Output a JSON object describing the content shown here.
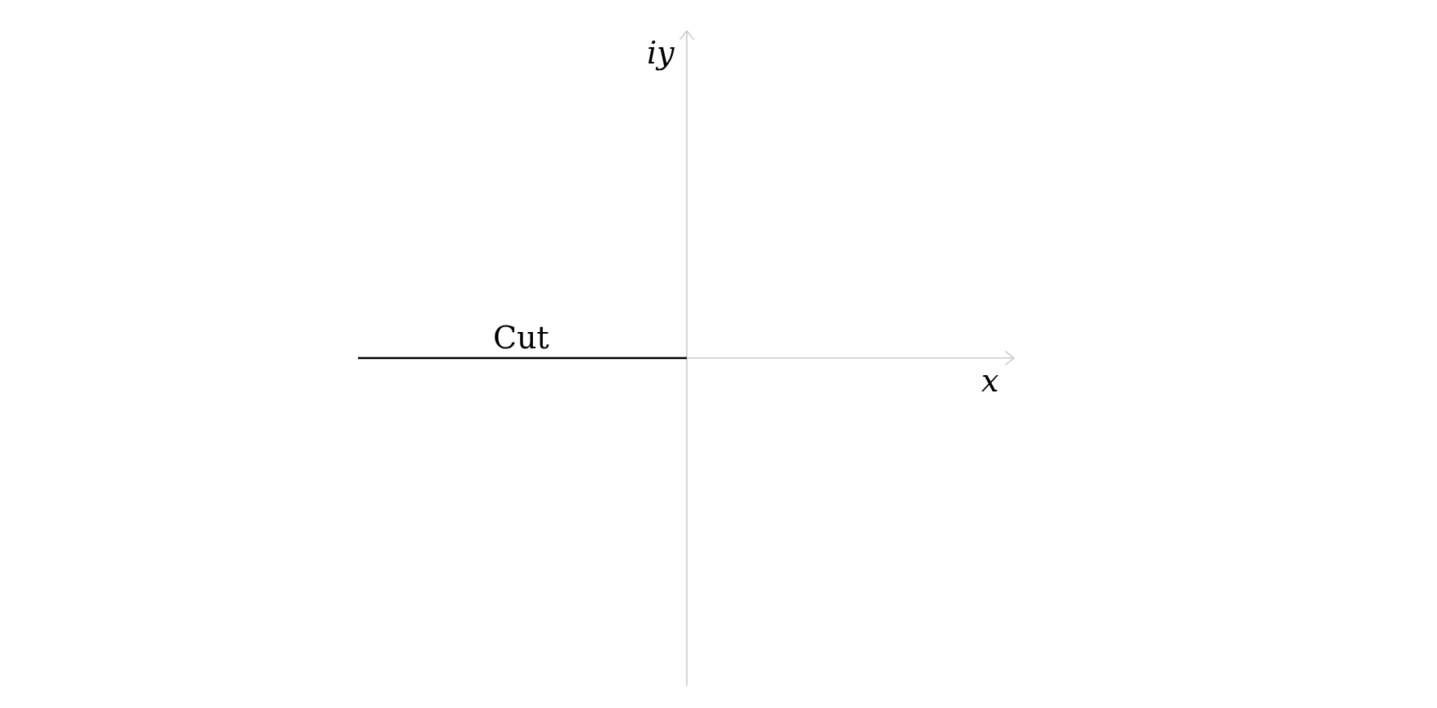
{
  "diagram": {
    "y_axis_label": "iy",
    "x_axis_label": "x",
    "cut_label": "Cut",
    "colors": {
      "axes": "#cccccc",
      "cut": "#000000",
      "text": "#000000",
      "background": "#ffffff"
    }
  }
}
